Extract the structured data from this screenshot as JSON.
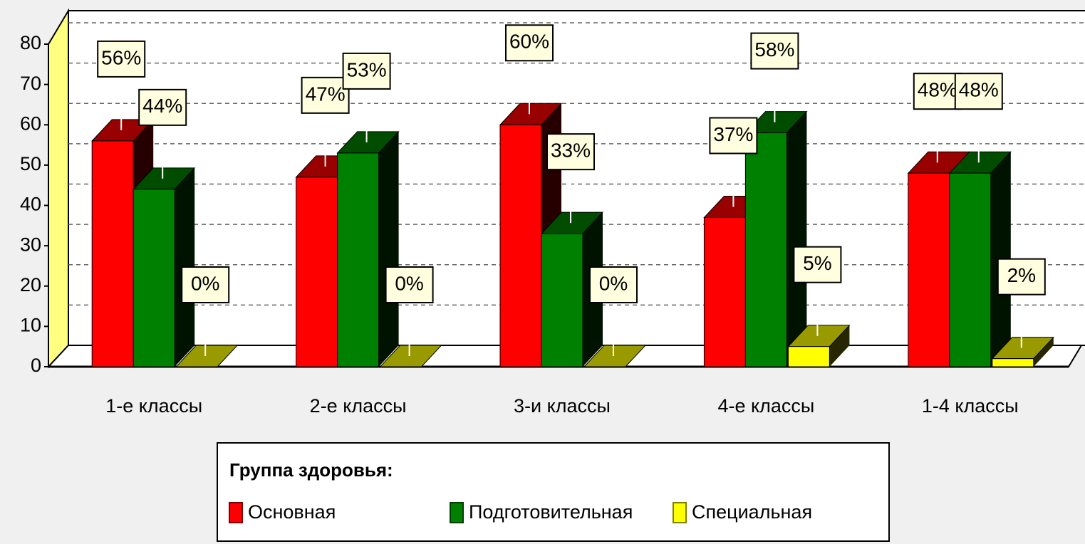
{
  "chart_data": {
    "type": "bar3d",
    "categories": [
      "1-е классы",
      "2-е классы",
      "3-и классы",
      "4-е классы",
      "1-4 классы"
    ],
    "series": [
      {
        "name": "Основная",
        "color": "#ff0000",
        "values": [
          56,
          47,
          60,
          37,
          48
        ],
        "value_labels": [
          "56%",
          "47%",
          "60%",
          "37%",
          "48%"
        ]
      },
      {
        "name": "Подготовительная",
        "color": "#008000",
        "values": [
          44,
          53,
          33,
          58,
          48
        ],
        "value_labels": [
          "44%",
          "53%",
          "33%",
          "58%",
          "48%"
        ]
      },
      {
        "name": "Специальная",
        "color": "#ffff00",
        "values": [
          0,
          0,
          0,
          5,
          2
        ],
        "value_labels": [
          "0%",
          "0%",
          "0%",
          "5%",
          "2%"
        ]
      }
    ],
    "ylim": [
      0,
      80
    ],
    "yticks": [
      0,
      10,
      20,
      30,
      40,
      50,
      60,
      70,
      80
    ],
    "grid": true,
    "legend": {
      "title": "Группа здоровья:",
      "position": "bottom"
    }
  }
}
